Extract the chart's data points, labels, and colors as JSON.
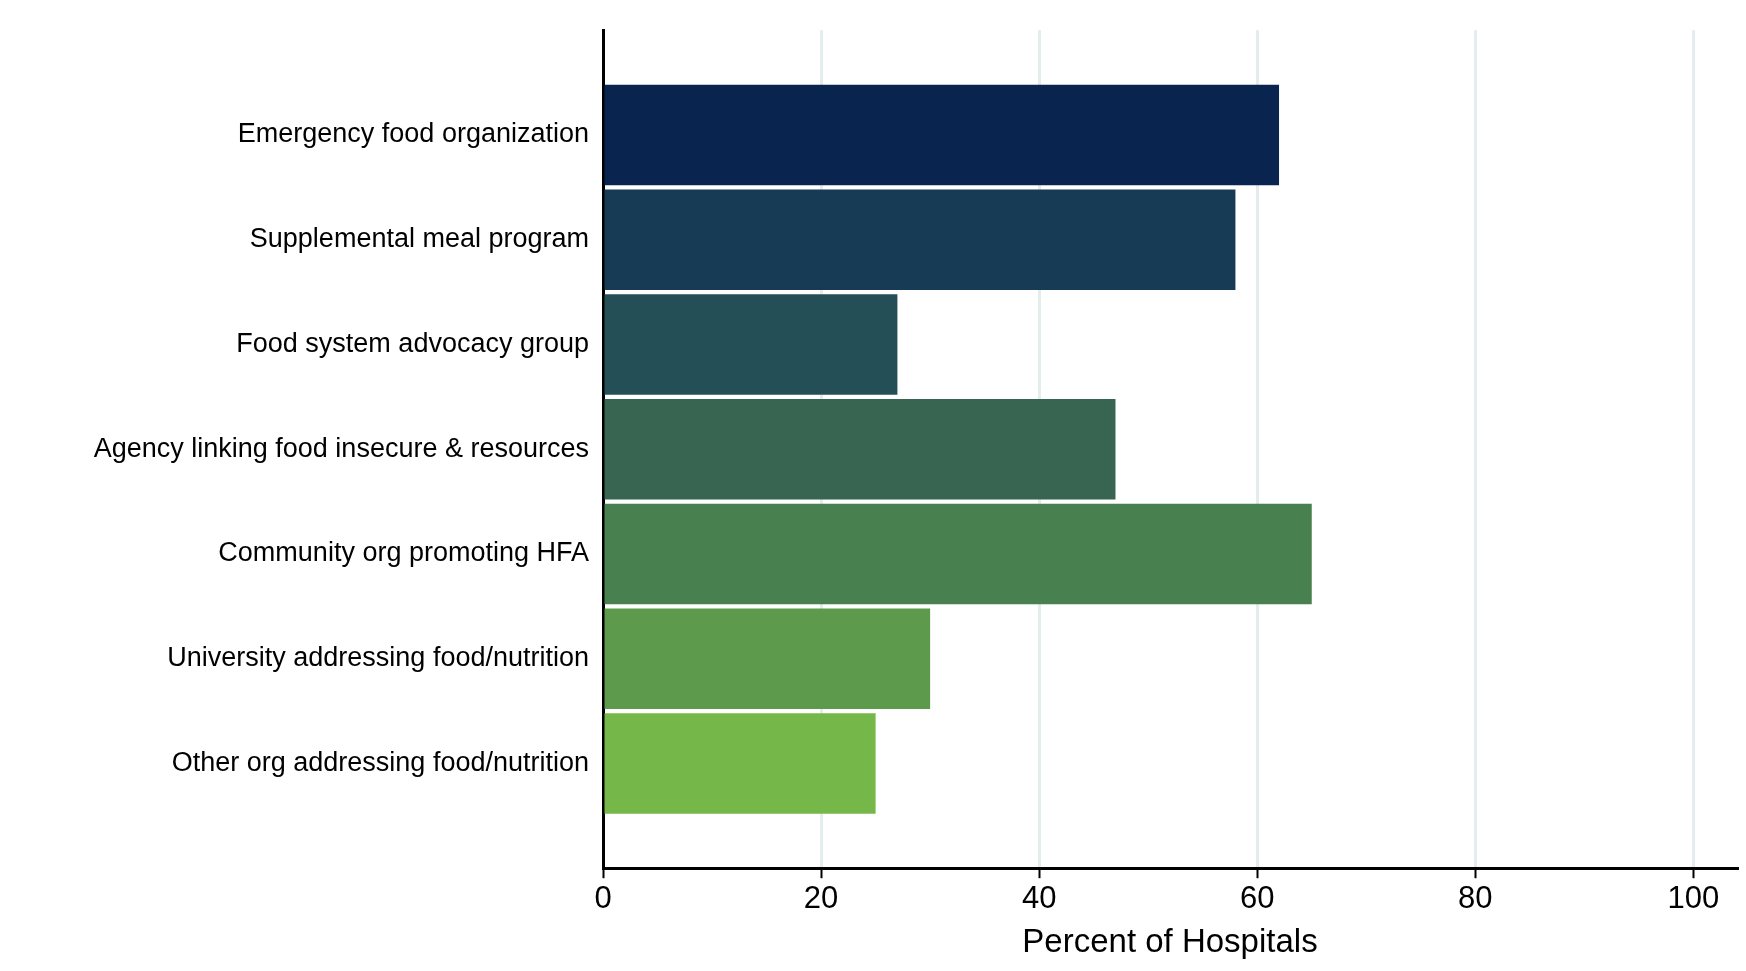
{
  "chart_data": {
    "type": "bar",
    "orientation": "horizontal",
    "xlabel": "Percent of Hospitals",
    "categories": [
      "Emergency food organization",
      "Supplemental meal program",
      "Food system advocacy group",
      "Agency linking food insecure & resources",
      "Community org promoting HFA",
      "University addressing food/nutrition",
      "Other org addressing food/nutrition"
    ],
    "values": [
      62,
      58,
      27,
      47,
      65,
      30,
      25
    ],
    "colors": [
      "#08244f",
      "#173a55",
      "#244f56",
      "#376552",
      "#48804f",
      "#5d9a4c",
      "#76b74a"
    ],
    "xlim": [
      0,
      104
    ],
    "xticks": [
      0,
      20,
      40,
      60,
      80,
      100
    ],
    "grid": "x",
    "legend": false
  }
}
